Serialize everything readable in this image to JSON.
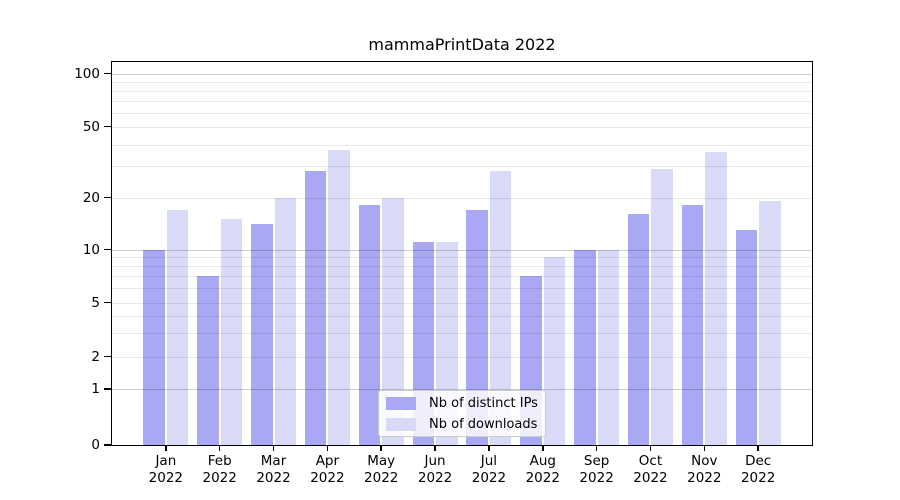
{
  "title": "mammaPrintData 2022",
  "y_axis": {
    "tick_labels": [
      "100",
      "50",
      "20",
      "10",
      "5",
      "2",
      "1",
      "0"
    ],
    "tick_values": [
      100,
      50,
      20,
      10,
      5,
      2,
      1,
      0
    ]
  },
  "x_axis": {
    "months": [
      "Jan",
      "Feb",
      "Mar",
      "Apr",
      "May",
      "Jun",
      "Jul",
      "Aug",
      "Sep",
      "Oct",
      "Nov",
      "Dec"
    ],
    "year": "2022"
  },
  "chart_data": {
    "type": "bar",
    "title": "mammaPrintData 2022",
    "categories": [
      "Jan 2022",
      "Feb 2022",
      "Mar 2022",
      "Apr 2022",
      "May 2022",
      "Jun 2022",
      "Jul 2022",
      "Aug 2022",
      "Sep 2022",
      "Oct 2022",
      "Nov 2022",
      "Dec 2022"
    ],
    "series": [
      {
        "name": "Nb of distinct IPs",
        "color": "#a8a8f4",
        "values": [
          10,
          7,
          14,
          28,
          18,
          11,
          17,
          7,
          10,
          16,
          18,
          13
        ]
      },
      {
        "name": "Nb of downloads",
        "color": "#d9d9f8",
        "values": [
          17,
          15,
          20,
          37,
          20,
          11,
          28,
          9,
          10,
          29,
          36,
          19
        ]
      }
    ],
    "yscale": "symlog",
    "ylim": [
      0,
      100
    ],
    "y_ticks": [
      0,
      1,
      2,
      5,
      10,
      20,
      50,
      100
    ],
    "grid": true,
    "legend_position": "lower center"
  }
}
